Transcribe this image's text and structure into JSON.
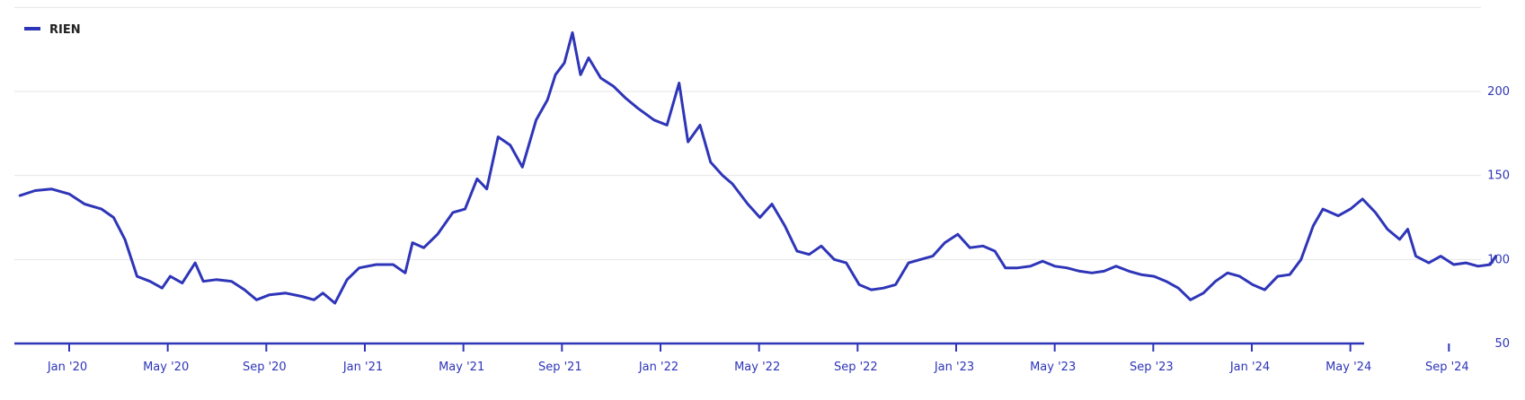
{
  "chart_data": {
    "type": "line",
    "title": "",
    "xlabel": "",
    "ylabel": "",
    "y_axis_side": "right",
    "ylim": [
      50,
      250
    ],
    "y_ticks": [
      50,
      100,
      150,
      200
    ],
    "x_tick_labels": [
      "Jan '20",
      "May '20",
      "Sep '20",
      "Jan '21",
      "May '21",
      "Sep '21",
      "Jan '22",
      "May '22",
      "Sep '22",
      "Jan '23",
      "May '23",
      "Sep '23",
      "Jan '24",
      "May '24",
      "Sep '24"
    ],
    "grid": true,
    "legend_position": "top-left",
    "series": [
      {
        "name": "RIEN",
        "color": "#2e35b8",
        "points": [
          [
            "2019-11-01",
            138
          ],
          [
            "2019-11-20",
            141
          ],
          [
            "2019-12-10",
            142
          ],
          [
            "2020-01-01",
            139
          ],
          [
            "2020-01-20",
            133
          ],
          [
            "2020-02-10",
            130
          ],
          [
            "2020-02-25",
            125
          ],
          [
            "2020-03-10",
            112
          ],
          [
            "2020-03-25",
            90
          ],
          [
            "2020-04-10",
            87
          ],
          [
            "2020-04-25",
            83
          ],
          [
            "2020-05-05",
            90
          ],
          [
            "2020-05-20",
            86
          ],
          [
            "2020-06-05",
            98
          ],
          [
            "2020-06-15",
            87
          ],
          [
            "2020-07-01",
            88
          ],
          [
            "2020-07-20",
            87
          ],
          [
            "2020-08-05",
            82
          ],
          [
            "2020-08-20",
            76
          ],
          [
            "2020-09-05",
            79
          ],
          [
            "2020-09-25",
            80
          ],
          [
            "2020-10-15",
            78
          ],
          [
            "2020-10-30",
            76
          ],
          [
            "2020-11-10",
            80
          ],
          [
            "2020-11-25",
            74
          ],
          [
            "2020-12-10",
            88
          ],
          [
            "2020-12-25",
            95
          ],
          [
            "2021-01-15",
            97
          ],
          [
            "2021-02-05",
            97
          ],
          [
            "2021-02-20",
            92
          ],
          [
            "2021-03-01",
            110
          ],
          [
            "2021-03-15",
            107
          ],
          [
            "2021-04-01",
            115
          ],
          [
            "2021-04-20",
            128
          ],
          [
            "2021-05-05",
            130
          ],
          [
            "2021-05-20",
            148
          ],
          [
            "2021-06-01",
            142
          ],
          [
            "2021-06-15",
            173
          ],
          [
            "2021-06-30",
            168
          ],
          [
            "2021-07-15",
            155
          ],
          [
            "2021-08-01",
            183
          ],
          [
            "2021-08-15",
            195
          ],
          [
            "2021-08-25",
            210
          ],
          [
            "2021-09-05",
            217
          ],
          [
            "2021-09-15",
            235
          ],
          [
            "2021-09-25",
            210
          ],
          [
            "2021-10-05",
            220
          ],
          [
            "2021-10-20",
            208
          ],
          [
            "2021-11-05",
            203
          ],
          [
            "2021-11-20",
            196
          ],
          [
            "2021-12-05",
            190
          ],
          [
            "2021-12-25",
            183
          ],
          [
            "2022-01-10",
            180
          ],
          [
            "2022-01-25",
            205
          ],
          [
            "2022-02-05",
            170
          ],
          [
            "2022-02-20",
            180
          ],
          [
            "2022-03-05",
            158
          ],
          [
            "2022-03-20",
            150
          ],
          [
            "2022-04-01",
            145
          ],
          [
            "2022-04-20",
            133
          ],
          [
            "2022-05-05",
            125
          ],
          [
            "2022-05-20",
            133
          ],
          [
            "2022-06-05",
            120
          ],
          [
            "2022-06-20",
            105
          ],
          [
            "2022-07-05",
            103
          ],
          [
            "2022-07-20",
            108
          ],
          [
            "2022-08-05",
            100
          ],
          [
            "2022-08-20",
            98
          ],
          [
            "2022-09-05",
            85
          ],
          [
            "2022-09-20",
            82
          ],
          [
            "2022-10-05",
            83
          ],
          [
            "2022-10-20",
            85
          ],
          [
            "2022-11-05",
            98
          ],
          [
            "2022-11-20",
            100
          ],
          [
            "2022-12-05",
            102
          ],
          [
            "2022-12-20",
            110
          ],
          [
            "2023-01-05",
            115
          ],
          [
            "2023-01-20",
            107
          ],
          [
            "2023-02-05",
            108
          ],
          [
            "2023-02-20",
            105
          ],
          [
            "2023-03-05",
            95
          ],
          [
            "2023-03-20",
            95
          ],
          [
            "2023-04-05",
            96
          ],
          [
            "2023-04-20",
            99
          ],
          [
            "2023-05-05",
            96
          ],
          [
            "2023-05-20",
            95
          ],
          [
            "2023-06-05",
            93
          ],
          [
            "2023-06-20",
            92
          ],
          [
            "2023-07-05",
            93
          ],
          [
            "2023-07-20",
            96
          ],
          [
            "2023-08-05",
            93
          ],
          [
            "2023-08-20",
            91
          ],
          [
            "2023-09-05",
            90
          ],
          [
            "2023-09-20",
            87
          ],
          [
            "2023-10-05",
            83
          ],
          [
            "2023-10-20",
            76
          ],
          [
            "2023-11-05",
            80
          ],
          [
            "2023-11-20",
            87
          ],
          [
            "2023-12-05",
            92
          ],
          [
            "2023-12-20",
            90
          ],
          [
            "2024-01-05",
            85
          ],
          [
            "2024-01-20",
            82
          ],
          [
            "2024-02-05",
            90
          ],
          [
            "2024-02-20",
            91
          ],
          [
            "2024-03-05",
            100
          ],
          [
            "2024-03-20",
            120
          ],
          [
            "2024-04-01",
            130
          ],
          [
            "2024-04-20",
            126
          ],
          [
            "2024-05-05",
            130
          ],
          [
            "2024-05-20",
            136
          ],
          [
            "2024-06-05",
            128
          ],
          [
            "2024-06-20",
            118
          ],
          [
            "2024-07-05",
            112
          ],
          [
            "2024-07-15",
            118
          ],
          [
            "2024-07-25",
            102
          ],
          [
            "2024-08-10",
            98
          ],
          [
            "2024-08-25",
            102
          ],
          [
            "2024-09-10",
            97
          ],
          [
            "2024-09-25",
            98
          ],
          [
            "2024-10-10",
            96
          ],
          [
            "2024-10-25",
            97
          ],
          [
            "2024-11-01",
            102
          ]
        ]
      }
    ]
  }
}
